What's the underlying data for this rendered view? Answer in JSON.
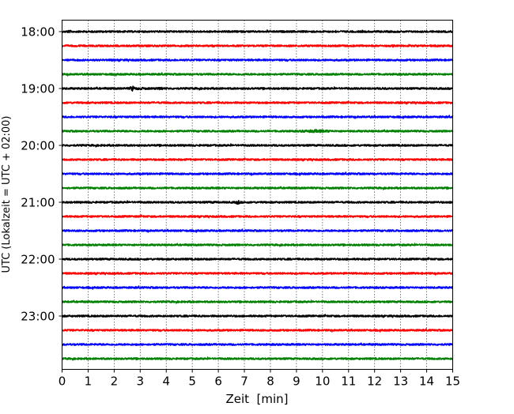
{
  "chart_data": {
    "type": "line",
    "title": "",
    "xlabel": "Zeit  [min]",
    "ylabel": "UTC (Lokalzeit = UTC + 02:00)",
    "xlim": [
      0,
      15
    ],
    "x_ticks": [
      0,
      1,
      2,
      3,
      4,
      5,
      6,
      7,
      8,
      9,
      10,
      11,
      12,
      13,
      14,
      15
    ],
    "y_tick_labels": [
      "18:00",
      "19:00",
      "20:00",
      "21:00",
      "22:00",
      "23:00"
    ],
    "grid": "vertical dotted at each minute",
    "trace_interval_min": 15,
    "color_cycle": [
      "#000000",
      "#ff0000",
      "#0000ff",
      "#008000"
    ],
    "traces": [
      {
        "start": "18:00",
        "events": [
          {
            "t": 0.1,
            "amp": 1.6,
            "dur": 0.3
          }
        ]
      },
      {
        "start": "18:15",
        "events": []
      },
      {
        "start": "18:30",
        "events": []
      },
      {
        "start": "18:45",
        "events": []
      },
      {
        "start": "19:00",
        "events": [
          {
            "t": 2.1,
            "amp": 1.4,
            "dur": 1.7
          },
          {
            "t": 2.65,
            "amp": 3.2,
            "dur": 0.1
          },
          {
            "t": 3.75,
            "amp": 2.2,
            "dur": 0.1
          },
          {
            "t": 12.3,
            "amp": 1.6,
            "dur": 0.1
          }
        ]
      },
      {
        "start": "19:15",
        "events": []
      },
      {
        "start": "19:30",
        "events": []
      },
      {
        "start": "19:45",
        "events": [
          {
            "t": 9.0,
            "amp": 1.8,
            "dur": 1.5
          }
        ]
      },
      {
        "start": "20:00",
        "events": []
      },
      {
        "start": "20:15",
        "events": []
      },
      {
        "start": "20:30",
        "events": []
      },
      {
        "start": "20:45",
        "events": []
      },
      {
        "start": "21:00",
        "events": [
          {
            "t": 5.0,
            "amp": 1.2,
            "dur": 1.5
          },
          {
            "t": 6.7,
            "amp": 2.6,
            "dur": 0.1
          }
        ]
      },
      {
        "start": "21:15",
        "events": []
      },
      {
        "start": "21:30",
        "events": []
      },
      {
        "start": "21:45",
        "events": []
      },
      {
        "start": "22:00",
        "events": []
      },
      {
        "start": "22:15",
        "events": []
      },
      {
        "start": "22:30",
        "events": []
      },
      {
        "start": "22:45",
        "events": []
      },
      {
        "start": "23:00",
        "events": []
      },
      {
        "start": "23:15",
        "events": []
      },
      {
        "start": "23:30",
        "events": []
      },
      {
        "start": "23:45",
        "events": []
      }
    ]
  }
}
